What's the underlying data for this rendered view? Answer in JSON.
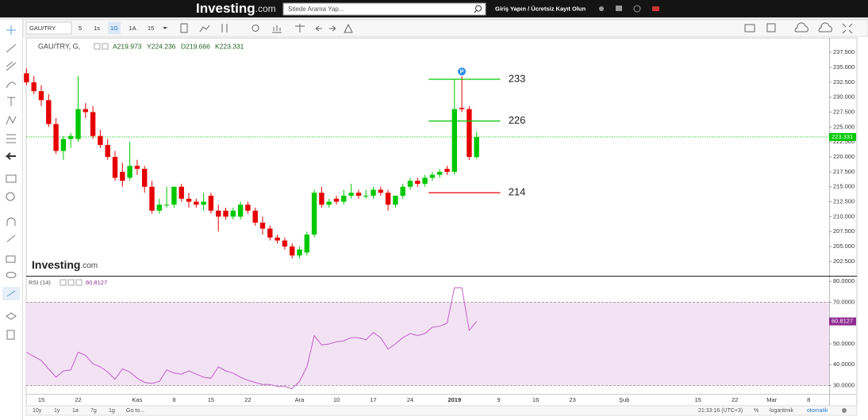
{
  "ui": {
    "logo_main": "Investing",
    "logo_suffix": ".com",
    "search_placeholder": "Sitede Arama Yap...",
    "login": "Giriş Yapın / Ücretsiz Kayıt Olun",
    "symbol": "GAU/TRY",
    "intervals": [
      "5",
      "1s",
      "1G",
      "1A",
      "15"
    ],
    "bottom_ranges": [
      "10y",
      "1y",
      "1a",
      "7g",
      "1g"
    ],
    "goto": "Go to...",
    "clock": "21:33:16 (UTC+3)",
    "percent": "%",
    "log": "logaritmik",
    "auto": "otomatik",
    "watermark_main": "Investing",
    "watermark_suffix": ".com"
  },
  "chart_data": [
    {
      "type": "candlestick",
      "title": "GAU/TRY, G,",
      "legend_values": [
        "A219.973",
        "Y224.236",
        "D219.666",
        "K223.331"
      ],
      "open": [
        234.0,
        232.5,
        231.0,
        229.5,
        225.5,
        221.0,
        223.0,
        223.0,
        228.0,
        227.5,
        223.5,
        222.0,
        220.0,
        217.5,
        216.5,
        218.5,
        218.0,
        215.0,
        211.0,
        212.0,
        212.0,
        215.0,
        213.0,
        212.5,
        212.0,
        213.5,
        211.0,
        211.0,
        210.0,
        210.0,
        212.0,
        211.0,
        209.0,
        208.0,
        206.5,
        206.0,
        205.0,
        203.5,
        204.0,
        207.0,
        214.0,
        212.0,
        213.0,
        212.5,
        213.5,
        214.0,
        213.5,
        213.5,
        214.5,
        214.0,
        212.0,
        213.5,
        215.0,
        216.0,
        215.5,
        216.5,
        217.0,
        218.0,
        217.5,
        228.2,
        228.0,
        219.973
      ],
      "high": [
        234.8,
        233.5,
        232.0,
        230.5,
        226.5,
        223.5,
        224.0,
        233.5,
        229.0,
        228.5,
        224.5,
        223.0,
        221.0,
        219.0,
        222.5,
        219.5,
        218.5,
        216.0,
        213.0,
        215.0,
        215.0,
        215.5,
        214.0,
        213.0,
        214.0,
        214.0,
        212.0,
        211.5,
        211.5,
        212.5,
        212.5,
        211.5,
        210.0,
        208.5,
        207.0,
        206.5,
        205.5,
        205.0,
        207.5,
        214.5,
        215.0,
        213.0,
        213.5,
        214.5,
        215.5,
        214.5,
        214.5,
        215.0,
        215.0,
        214.5,
        213.5,
        215.5,
        216.5,
        216.5,
        217.0,
        217.5,
        218.0,
        218.5,
        233.0,
        233.5,
        228.5,
        224.236
      ],
      "low": [
        232.0,
        230.5,
        228.5,
        225.0,
        220.5,
        219.5,
        221.5,
        222.5,
        226.5,
        223.0,
        221.5,
        219.5,
        216.0,
        215.0,
        216.0,
        217.0,
        214.0,
        210.5,
        210.5,
        211.5,
        211.5,
        212.5,
        211.5,
        211.5,
        211.0,
        210.5,
        207.5,
        209.5,
        209.5,
        209.5,
        210.5,
        208.5,
        207.0,
        206.0,
        205.5,
        204.5,
        203.0,
        203.0,
        203.5,
        206.5,
        211.5,
        211.5,
        212.0,
        212.0,
        213.0,
        213.0,
        213.0,
        213.0,
        213.5,
        211.0,
        211.5,
        213.0,
        214.5,
        215.0,
        215.0,
        216.0,
        216.5,
        217.0,
        217.0,
        227.5,
        219.5,
        219.666
      ],
      "close": [
        232.5,
        231.0,
        229.5,
        225.5,
        221.0,
        223.0,
        223.5,
        228.0,
        227.5,
        223.5,
        222.0,
        220.0,
        216.5,
        216.0,
        218.5,
        218.0,
        215.0,
        211.0,
        212.0,
        212.0,
        215.0,
        213.0,
        212.5,
        212.0,
        212.5,
        211.0,
        210.0,
        210.0,
        211.0,
        212.0,
        211.0,
        209.0,
        208.0,
        206.5,
        206.0,
        205.0,
        203.5,
        204.5,
        207.0,
        214.0,
        212.0,
        212.5,
        212.5,
        213.5,
        214.0,
        213.5,
        213.5,
        214.5,
        214.0,
        212.0,
        213.5,
        215.0,
        216.0,
        215.5,
        216.5,
        217.0,
        217.5,
        217.5,
        228.0,
        228.0,
        220.0,
        223.331
      ],
      "up_color": "#00c800",
      "down_color": "#e60000",
      "ylim": [
        200.1,
        239.9
      ],
      "yticks": [
        {
          "value": 237.5,
          "label": "237.500"
        },
        {
          "value": 235,
          "label": "235.000"
        },
        {
          "value": 232.5,
          "label": "232.500"
        },
        {
          "value": 230,
          "label": "230.000"
        },
        {
          "value": 227.5,
          "label": "227.500"
        },
        {
          "value": 225,
          "label": "225.000"
        },
        {
          "value": 222.5,
          "label": "222.500"
        },
        {
          "value": 220,
          "label": "220.000"
        },
        {
          "value": 217.5,
          "label": "217.500"
        },
        {
          "value": 215,
          "label": "215.000"
        },
        {
          "value": 212.5,
          "label": "212.500"
        },
        {
          "value": 210,
          "label": "210.000"
        },
        {
          "value": 207.5,
          "label": "207.500"
        },
        {
          "value": 205,
          "label": "205.000"
        },
        {
          "value": 202.5,
          "label": "202.500"
        }
      ],
      "last_price": {
        "value": 223.331,
        "label": "223.331"
      },
      "annotations": [
        {
          "value": 233,
          "label": "233",
          "color": "#00c800"
        },
        {
          "value": 226,
          "label": "226",
          "color": "#00c800"
        },
        {
          "value": 214,
          "label": "214",
          "color": "#e60000"
        }
      ],
      "event_marker": "P"
    },
    {
      "type": "line",
      "title": "RSI (14)",
      "last_value": {
        "value": 60.8127,
        "label": "60.8127"
      },
      "categories": [
        null,
        null,
        "15",
        null,
        null,
        null,
        null,
        "22",
        null,
        null,
        null,
        null,
        null,
        null,
        null,
        "Kas",
        null,
        null,
        null,
        null,
        "8",
        null,
        null,
        null,
        null,
        "15",
        null,
        null,
        null,
        null,
        "22",
        null,
        null,
        null,
        null,
        null,
        null,
        "Ara",
        null,
        null,
        null,
        null,
        "10",
        null,
        null,
        null,
        null,
        "17",
        null,
        null,
        null,
        null,
        "24",
        null,
        null,
        null,
        null,
        null,
        "2019",
        null,
        null,
        null,
        null,
        null,
        "9",
        null,
        null,
        null,
        null,
        "16",
        null,
        null,
        null,
        null,
        "23",
        null,
        null,
        null,
        null,
        null,
        null,
        "Şub",
        null,
        null,
        null,
        null,
        null,
        null,
        null,
        null,
        null,
        "15",
        null,
        null,
        null,
        null,
        "22",
        null,
        null,
        null,
        null,
        "Mar",
        null,
        null,
        null,
        null,
        "8",
        null,
        null
      ],
      "values": [
        46,
        44,
        42,
        38,
        34,
        37,
        37.5,
        46,
        44.5,
        40.5,
        39,
        36.5,
        33,
        38,
        36.5,
        33.5,
        31.5,
        31,
        32,
        37.5,
        36,
        35.5,
        37,
        35.5,
        34,
        33.5,
        39,
        37,
        36,
        34,
        32.5,
        31.5,
        30.5,
        30.5,
        29.5,
        29.5,
        28.5,
        32,
        39,
        54,
        49.5,
        50,
        51,
        51.5,
        53,
        53,
        52,
        55.5,
        53,
        47.5,
        50,
        53,
        55,
        54,
        55,
        58,
        58.5,
        60,
        77,
        77,
        56.5,
        60.8127,
        null,
        null,
        null,
        null,
        null,
        null,
        null,
        null,
        null,
        null,
        null,
        null,
        null,
        null,
        null,
        null,
        null,
        null,
        null,
        null,
        null,
        null,
        null,
        null,
        null,
        null,
        null,
        null,
        null,
        null,
        null,
        null,
        null,
        null,
        null,
        null,
        null,
        null,
        null,
        null,
        null,
        null,
        null,
        null,
        null,
        null,
        null
      ],
      "color": "#c060c8",
      "band": [
        30,
        70
      ],
      "band_color": "#f3e2f4",
      "last_color": "#8e2b91",
      "ylim": [
        26,
        82
      ],
      "yticks": [
        {
          "value": 80,
          "label": "80.0000"
        },
        {
          "value": 70,
          "label": "70.0000"
        },
        {
          "value": 50,
          "label": "50.0000"
        },
        {
          "value": 40,
          "label": "40.0000"
        },
        {
          "value": 30,
          "label": "30.0000"
        }
      ]
    }
  ]
}
